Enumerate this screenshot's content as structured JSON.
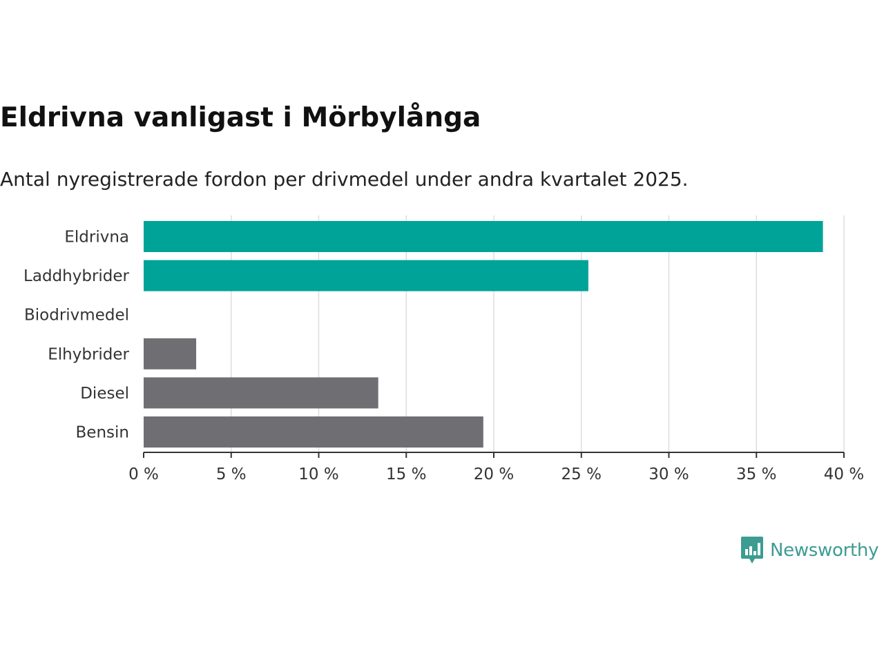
{
  "title": "Eldrivna vanligast i Mörbylånga",
  "subtitle": "Antal nyregistrerade fordon per drivmedel under andra kvartalet 2025.",
  "brand": {
    "name": "Newsworthy",
    "icon": "newsworthy-logo-icon",
    "color": "#3c9c92"
  },
  "colors": {
    "highlight": "#00a398",
    "other": "#6e6e73",
    "grid": "#dddddd",
    "axis": "#333333"
  },
  "chart_data": {
    "type": "bar",
    "orientation": "horizontal",
    "categories": [
      "Eldrivna",
      "Laddhybrider",
      "Biodrivmedel",
      "Elhybrider",
      "Diesel",
      "Bensin"
    ],
    "values": [
      38.8,
      25.4,
      0,
      3.0,
      13.4,
      19.4
    ],
    "highlight": [
      true,
      true,
      true,
      false,
      false,
      false
    ],
    "xlim": [
      0,
      40
    ],
    "xticks": [
      0,
      5,
      10,
      15,
      20,
      25,
      30,
      35,
      40
    ],
    "tick_suffix": " %",
    "grid": true,
    "legend": "none"
  }
}
